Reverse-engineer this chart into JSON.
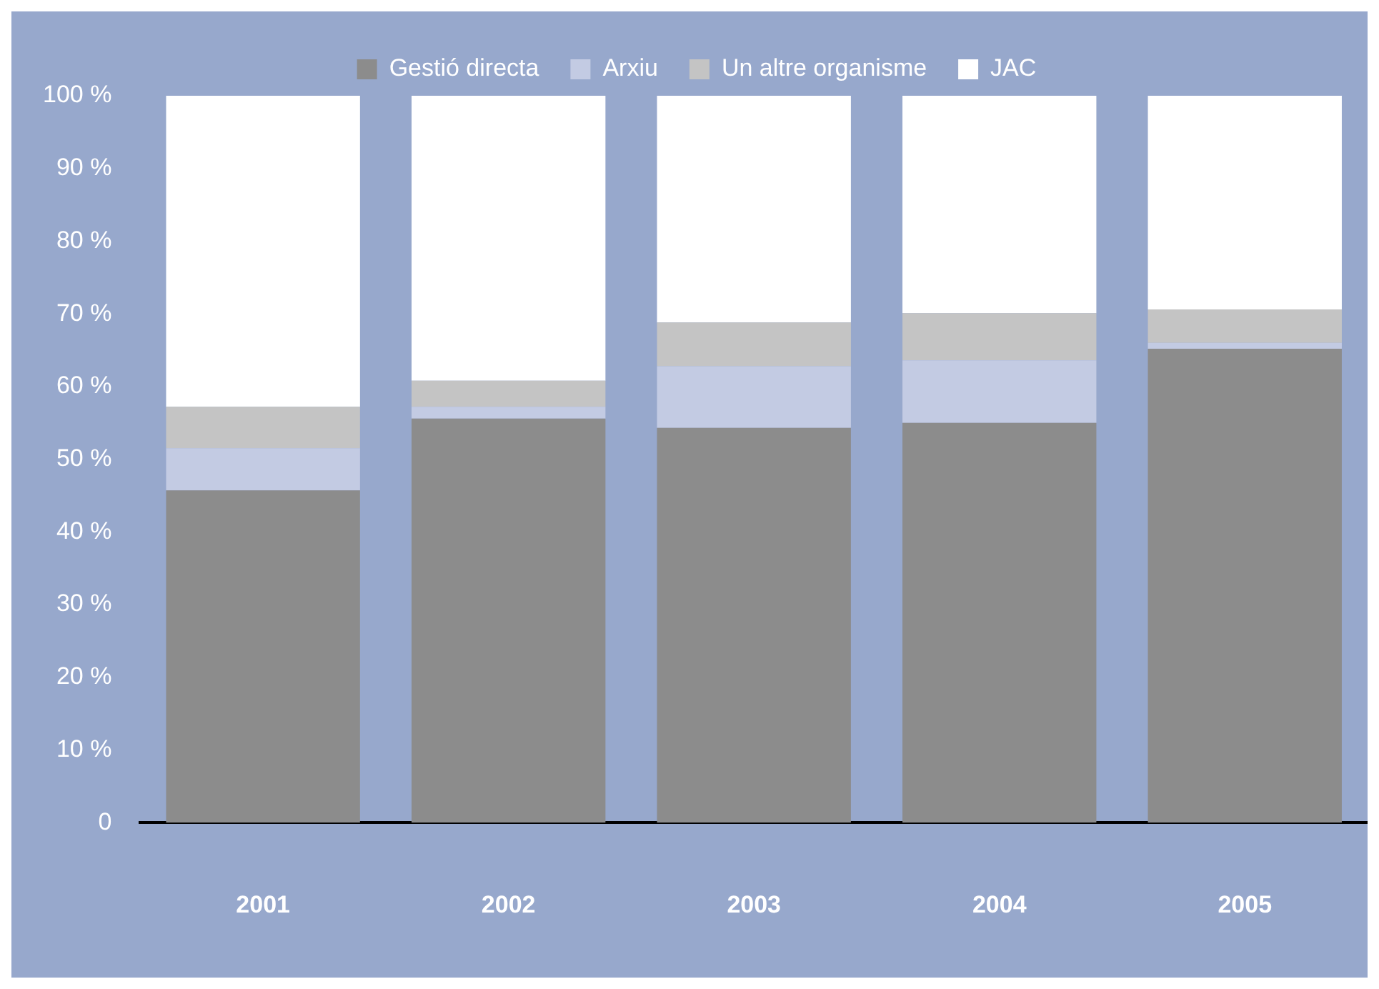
{
  "chart_data": {
    "type": "bar",
    "stacked": true,
    "categories": [
      "2001",
      "2002",
      "2003",
      "2004",
      "2005"
    ],
    "series": [
      {
        "name": "Gestió directa",
        "color": "#8c8c8c",
        "values": [
          45.7,
          55.6,
          54.3,
          55.0,
          65.2
        ]
      },
      {
        "name": "Arxiu",
        "color": "#c3cbe3",
        "values": [
          5.8,
          1.6,
          8.5,
          8.6,
          0.8
        ]
      },
      {
        "name": "Un altre organisme",
        "color": "#c4c4c4",
        "values": [
          5.7,
          3.6,
          6.0,
          6.5,
          4.6
        ]
      },
      {
        "name": "JAC",
        "color": "#ffffff",
        "values": [
          42.8,
          39.2,
          31.2,
          29.9,
          29.4
        ]
      }
    ],
    "ylim": [
      0,
      100
    ],
    "yticks": [
      0,
      {
        "value": 10,
        "label": "10 %"
      },
      {
        "value": 20,
        "label": "20 %"
      },
      {
        "value": 30,
        "label": "30 %"
      },
      {
        "value": 40,
        "label": "40 %"
      },
      {
        "value": 50,
        "label": "50 %"
      },
      {
        "value": 60,
        "label": "60 %"
      },
      {
        "value": 70,
        "label": "70 %"
      },
      {
        "value": 80,
        "label": "80 %"
      },
      {
        "value": 90,
        "label": "90 %"
      },
      {
        "value": 100,
        "label": "100 %"
      }
    ],
    "grid": false,
    "legend": "top"
  }
}
